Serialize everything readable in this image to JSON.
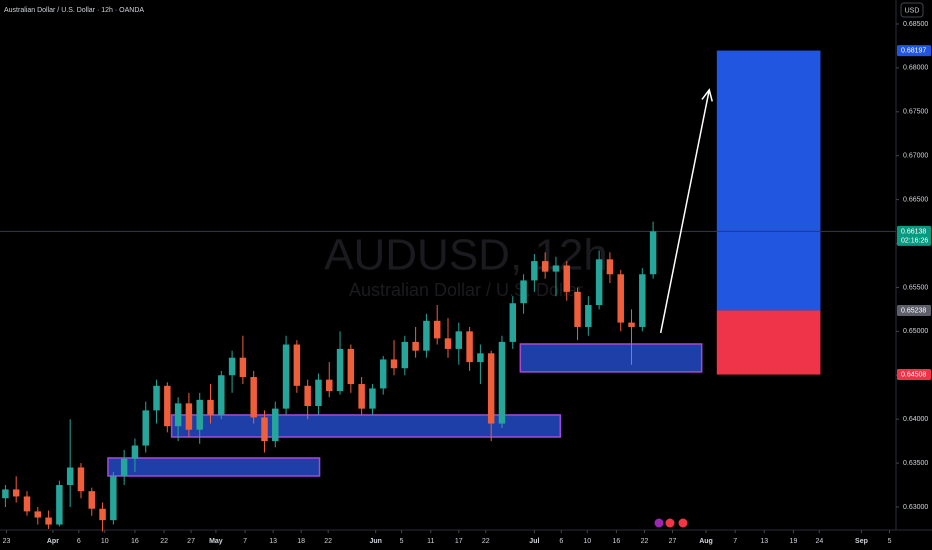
{
  "chart_data": {
    "type": "candlestick",
    "title": "Australian Dollar / U.S. Dollar · 12h · OANDA",
    "watermark": "AUDUSD, 12h",
    "watermark_subtitle": "Australian Dollar / U.S. Dollar",
    "currency": "USD",
    "up_color": "#26a69a",
    "down_color": "#ef5f3c",
    "ylim": [
      0.62738,
      0.68773
    ],
    "yticks": [
      {
        "value": 0.63,
        "label": "0.63000"
      },
      {
        "value": 0.635,
        "label": "0.63500"
      },
      {
        "value": 0.64,
        "label": "0.64000"
      },
      {
        "value": 0.645,
        "label": "0.64500"
      },
      {
        "value": 0.65,
        "label": "0.65000"
      },
      {
        "value": 0.655,
        "label": "0.65500"
      },
      {
        "value": 0.66,
        "label": "0.66000"
      },
      {
        "value": 0.665,
        "label": "0.66500"
      },
      {
        "value": 0.67,
        "label": "0.67000"
      },
      {
        "value": 0.675,
        "label": "0.67500"
      },
      {
        "value": 0.68,
        "label": "0.68000"
      },
      {
        "value": 0.685,
        "label": "0.68500"
      }
    ],
    "xlim": [
      -0.5,
      82.5
    ],
    "xticks": [
      {
        "value": 0.1,
        "label": "23"
      },
      {
        "value": 4.4,
        "label": "Apr"
      },
      {
        "value": 6.8,
        "label": "6"
      },
      {
        "value": 9.2,
        "label": "10"
      },
      {
        "value": 12,
        "label": "16"
      },
      {
        "value": 14.7,
        "label": "22"
      },
      {
        "value": 17.2,
        "label": "27"
      },
      {
        "value": 19.5,
        "label": "May"
      },
      {
        "value": 22.2,
        "label": "7"
      },
      {
        "value": 24.8,
        "label": "13"
      },
      {
        "value": 27.4,
        "label": "18"
      },
      {
        "value": 29.9,
        "label": "22"
      },
      {
        "value": 34.3,
        "label": "Jun"
      },
      {
        "value": 36.7,
        "label": "5"
      },
      {
        "value": 39.4,
        "label": "11"
      },
      {
        "value": 42,
        "label": "17"
      },
      {
        "value": 44.5,
        "label": "22"
      },
      {
        "value": 49,
        "label": "Jul"
      },
      {
        "value": 51.5,
        "label": "6"
      },
      {
        "value": 53.9,
        "label": "10"
      },
      {
        "value": 56.6,
        "label": "16"
      },
      {
        "value": 59.2,
        "label": "22"
      },
      {
        "value": 61.8,
        "label": "27"
      },
      {
        "value": 64.9,
        "label": "Aug"
      },
      {
        "value": 67.6,
        "label": "7"
      },
      {
        "value": 70.3,
        "label": "13"
      },
      {
        "value": 73,
        "label": "19"
      },
      {
        "value": 75.4,
        "label": "24"
      },
      {
        "value": 79.3,
        "label": "Sep"
      },
      {
        "value": 81.9,
        "label": "5"
      }
    ],
    "ohlc": [
      [
        0.631,
        0.6325,
        0.63,
        0.632
      ],
      [
        0.632,
        0.6335,
        0.6305,
        0.6312
      ],
      [
        0.6312,
        0.6318,
        0.629,
        0.6295
      ],
      [
        0.6295,
        0.63,
        0.628,
        0.6288
      ],
      [
        0.6288,
        0.6296,
        0.6275,
        0.628
      ],
      [
        0.628,
        0.633,
        0.6278,
        0.6325
      ],
      [
        0.6325,
        0.64,
        0.63,
        0.6345
      ],
      [
        0.6345,
        0.635,
        0.631,
        0.6318
      ],
      [
        0.6318,
        0.6322,
        0.629,
        0.6298
      ],
      [
        0.6298,
        0.6305,
        0.6272,
        0.6285
      ],
      [
        0.6285,
        0.634,
        0.628,
        0.6335
      ],
      [
        0.6335,
        0.6365,
        0.6325,
        0.6355
      ],
      [
        0.6355,
        0.6378,
        0.634,
        0.637
      ],
      [
        0.637,
        0.642,
        0.6362,
        0.641
      ],
      [
        0.641,
        0.6445,
        0.6395,
        0.6438
      ],
      [
        0.6438,
        0.6442,
        0.6385,
        0.6392
      ],
      [
        0.6392,
        0.6425,
        0.6375,
        0.6418
      ],
      [
        0.6418,
        0.643,
        0.638,
        0.6388
      ],
      [
        0.6388,
        0.643,
        0.6372,
        0.6422
      ],
      [
        0.6422,
        0.644,
        0.6395,
        0.6405
      ],
      [
        0.6405,
        0.6455,
        0.64,
        0.645
      ],
      [
        0.645,
        0.6478,
        0.643,
        0.647
      ],
      [
        0.647,
        0.6495,
        0.644,
        0.6448
      ],
      [
        0.6448,
        0.6455,
        0.6395,
        0.6402
      ],
      [
        0.6402,
        0.641,
        0.6362,
        0.6375
      ],
      [
        0.6375,
        0.642,
        0.6368,
        0.6412
      ],
      [
        0.6412,
        0.6495,
        0.6405,
        0.6485
      ],
      [
        0.6485,
        0.649,
        0.643,
        0.6438
      ],
      [
        0.6438,
        0.6445,
        0.64,
        0.6415
      ],
      [
        0.6415,
        0.6452,
        0.6405,
        0.6445
      ],
      [
        0.6445,
        0.6465,
        0.6425,
        0.6432
      ],
      [
        0.6432,
        0.65,
        0.6428,
        0.648
      ],
      [
        0.648,
        0.6485,
        0.643,
        0.644
      ],
      [
        0.644,
        0.6448,
        0.6405,
        0.6412
      ],
      [
        0.6412,
        0.644,
        0.6405,
        0.6435
      ],
      [
        0.6435,
        0.6472,
        0.6428,
        0.6468
      ],
      [
        0.6468,
        0.649,
        0.645,
        0.6458
      ],
      [
        0.6458,
        0.6495,
        0.645,
        0.6488
      ],
      [
        0.6488,
        0.6505,
        0.647,
        0.6478
      ],
      [
        0.6478,
        0.652,
        0.647,
        0.6512
      ],
      [
        0.6512,
        0.653,
        0.6485,
        0.6492
      ],
      [
        0.6492,
        0.6515,
        0.647,
        0.648
      ],
      [
        0.648,
        0.651,
        0.6462,
        0.65
      ],
      [
        0.65,
        0.6505,
        0.6455,
        0.6465
      ],
      [
        0.6465,
        0.6485,
        0.644,
        0.6475
      ],
      [
        0.6475,
        0.6478,
        0.6375,
        0.6395
      ],
      [
        0.6395,
        0.6495,
        0.639,
        0.6488
      ],
      [
        0.6488,
        0.654,
        0.648,
        0.6532
      ],
      [
        0.6532,
        0.6565,
        0.652,
        0.6558
      ],
      [
        0.6558,
        0.6588,
        0.6545,
        0.658
      ],
      [
        0.658,
        0.659,
        0.656,
        0.6568
      ],
      [
        0.6568,
        0.6585,
        0.654,
        0.6575
      ],
      [
        0.6575,
        0.658,
        0.6535,
        0.6545
      ],
      [
        0.6545,
        0.655,
        0.649,
        0.6505
      ],
      [
        0.6505,
        0.654,
        0.6495,
        0.653
      ],
      [
        0.653,
        0.6592,
        0.6525,
        0.6582
      ],
      [
        0.6582,
        0.659,
        0.6555,
        0.6565
      ],
      [
        0.6565,
        0.657,
        0.65,
        0.651
      ],
      [
        0.651,
        0.6525,
        0.6462,
        0.6505
      ],
      [
        0.6505,
        0.6572,
        0.65,
        0.6565
      ],
      [
        0.6565,
        0.6625,
        0.656,
        0.66138
      ]
    ],
    "zones": [
      {
        "x": [
          9.5,
          29.1
        ],
        "y": [
          0.63558,
          0.63353
        ]
      },
      {
        "x": [
          15.4,
          51.4
        ],
        "y": [
          0.64048,
          0.63797
        ]
      },
      {
        "x": [
          47.7,
          64.5
        ],
        "y": [
          0.64856,
          0.64538
        ]
      }
    ],
    "zone_color": "#1e3fa8",
    "zone_border": "#a64ad6",
    "position": {
      "x": [
        65.9,
        75.5
      ],
      "target": 0.68197,
      "entry": 0.65238,
      "stop": 0.64508,
      "profit_color": "#2157e0",
      "loss_color": "#ef3349"
    },
    "arrow": {
      "x": [
        60.7,
        65.2
      ],
      "y": [
        0.64982,
        0.6775
      ]
    },
    "badges": [
      {
        "value": 0.68197,
        "color": "#2157e0"
      },
      {
        "value": 0.66138,
        "color": "#089981",
        "countdown": "02:16:26"
      },
      {
        "value": 0.65238,
        "color": "#5d606b"
      },
      {
        "value": 0.64508,
        "color": "#ef3349"
      }
    ]
  }
}
